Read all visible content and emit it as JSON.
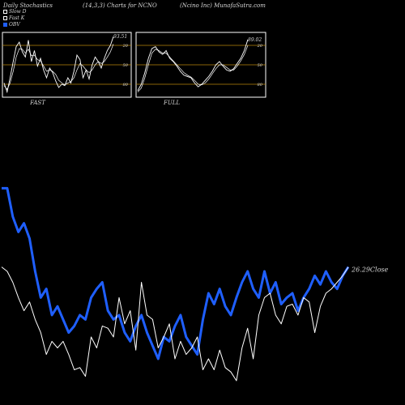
{
  "header": {
    "left": "Daily Stochastics",
    "center": "(14,3,3) Charts for NCNO",
    "right": "(Ncino  Inc) MunafaSutra.com"
  },
  "legend": [
    {
      "label": "Slow  D",
      "color": "#ffffff"
    },
    {
      "label": "Fast K",
      "color": "#ffffff"
    },
    {
      "label": "OBV",
      "color": "#1f5fff"
    }
  ],
  "colors": {
    "obv": "#1f5fff",
    "close": "#ffffff",
    "band": "#b8860b",
    "stoch": "#ffffff"
  },
  "chart_data": [
    {
      "type": "line",
      "title": "FAST",
      "ylim": [
        0,
        100
      ],
      "levels": [
        20,
        50,
        80
      ],
      "ticks": [
        "80",
        "50",
        "20"
      ],
      "last_label": "93.51",
      "series": [
        {
          "values": [
            22,
            8,
            30,
            55,
            78,
            85,
            70,
            62,
            88,
            55,
            72,
            48,
            60,
            42,
            30,
            45,
            38,
            25,
            15,
            20,
            18,
            30,
            22,
            40,
            65,
            58,
            30,
            42,
            28,
            50,
            62,
            55,
            45,
            60,
            72,
            80,
            93.51
          ]
        },
        {
          "values": [
            18,
            12,
            22,
            40,
            62,
            75,
            74,
            68,
            74,
            64,
            65,
            58,
            56,
            48,
            40,
            42,
            40,
            35,
            26,
            22,
            19,
            22,
            24,
            30,
            42,
            52,
            48,
            42,
            38,
            42,
            50,
            55,
            52,
            55,
            62,
            70,
            82
          ]
        }
      ]
    },
    {
      "type": "line",
      "title": "FULL",
      "ylim": [
        0,
        100
      ],
      "levels": [
        20,
        50,
        80
      ],
      "ticks": [
        "80",
        "50",
        "20"
      ],
      "last_label": "89.02",
      "series": [
        {
          "values": [
            10,
            20,
            38,
            60,
            75,
            78,
            70,
            66,
            72,
            60,
            55,
            48,
            40,
            34,
            32,
            30,
            22,
            16,
            20,
            26,
            32,
            40,
            50,
            55,
            48,
            42,
            40,
            44,
            52,
            60,
            72,
            89.02
          ]
        },
        {
          "values": [
            8,
            14,
            30,
            50,
            68,
            74,
            72,
            68,
            68,
            62,
            56,
            50,
            44,
            38,
            34,
            31,
            26,
            20,
            19,
            22,
            28,
            36,
            44,
            50,
            50,
            46,
            42,
            42,
            48,
            56,
            66,
            80
          ]
        }
      ]
    },
    {
      "type": "line",
      "title": "",
      "last_label": "26.29Close",
      "series": [
        {
          "name": "OBV",
          "values": [
            88,
            88,
            75,
            68,
            72,
            65,
            50,
            38,
            42,
            30,
            34,
            28,
            22,
            25,
            30,
            28,
            38,
            42,
            45,
            32,
            28,
            30,
            22,
            18,
            25,
            30,
            22,
            16,
            10,
            20,
            18,
            25,
            30,
            20,
            16,
            12,
            28,
            40,
            35,
            42,
            34,
            30,
            38,
            45,
            50,
            42,
            38,
            50,
            40,
            45,
            35,
            38,
            40,
            32,
            38,
            42,
            48,
            44,
            50,
            45,
            42,
            48,
            52
          ]
        },
        {
          "name": "Close",
          "values": [
            52,
            50,
            45,
            38,
            32,
            36,
            28,
            22,
            12,
            18,
            15,
            18,
            12,
            5,
            6,
            2,
            20,
            15,
            25,
            24,
            20,
            38,
            26,
            32,
            14,
            45,
            30,
            28,
            15,
            20,
            26,
            10,
            18,
            12,
            15,
            20,
            5,
            10,
            5,
            14,
            6,
            4,
            0,
            15,
            24,
            10,
            30,
            38,
            40,
            30,
            26,
            34,
            35,
            30,
            38,
            36,
            22,
            34,
            40,
            42,
            45,
            48,
            52
          ]
        }
      ]
    }
  ]
}
